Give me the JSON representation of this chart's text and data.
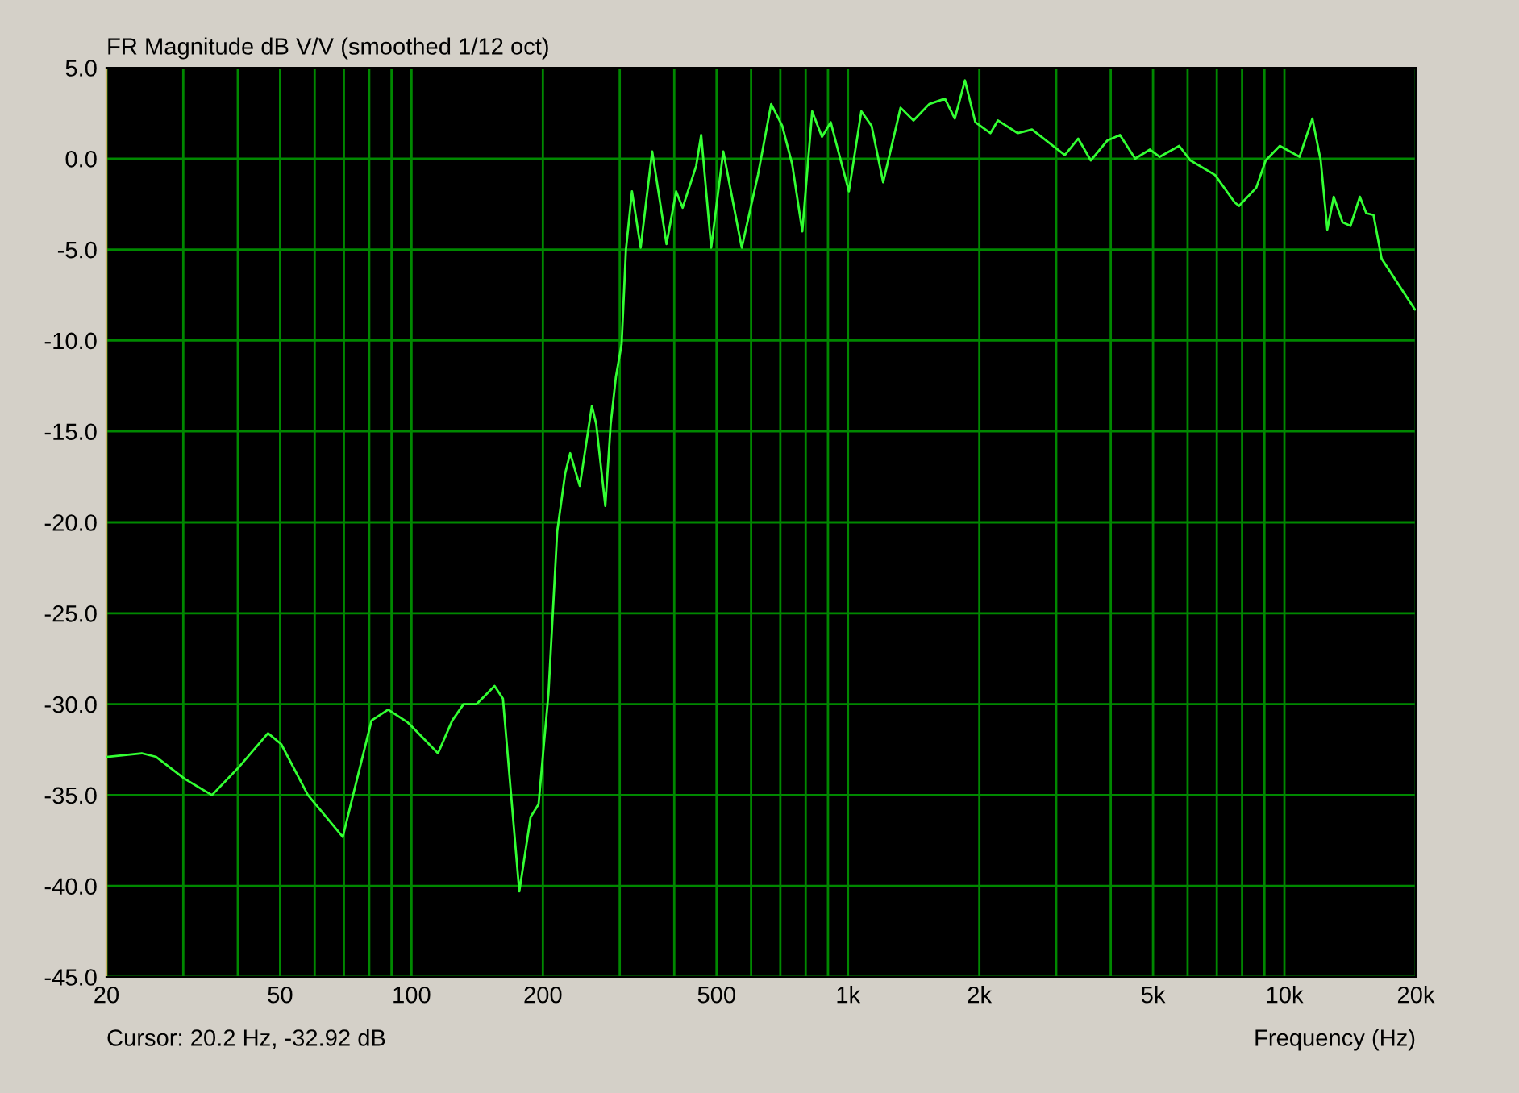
{
  "chart_data": {
    "type": "line",
    "title": "FR Magnitude dB V/V (smoothed 1/12 oct)",
    "xlabel": "Frequency (Hz)",
    "annotations": [
      "Cursor: 20.2 Hz, -32.92 dB"
    ],
    "log": "x",
    "grid": true,
    "xlim": [
      20,
      20000
    ],
    "ylim": [
      -45,
      5
    ],
    "xticks": [
      20,
      {
        "value": 30,
        "label": null
      },
      {
        "value": 40,
        "label": null
      },
      50,
      {
        "value": 60,
        "label": null
      },
      {
        "value": 70,
        "label": null
      },
      {
        "value": 80,
        "label": null
      },
      {
        "value": 90,
        "label": null
      },
      100,
      200,
      {
        "value": 300,
        "label": null
      },
      {
        "value": 400,
        "label": null
      },
      500,
      {
        "value": 600,
        "label": null
      },
      {
        "value": 700,
        "label": null
      },
      {
        "value": 800,
        "label": null
      },
      {
        "value": 900,
        "label": null
      },
      {
        "value": 1000,
        "label": "1k"
      },
      {
        "value": 2000,
        "label": "2k"
      },
      {
        "value": 3000,
        "label": null
      },
      {
        "value": 4000,
        "label": null
      },
      {
        "value": 5000,
        "label": "5k"
      },
      {
        "value": 6000,
        "label": null
      },
      {
        "value": 7000,
        "label": null
      },
      {
        "value": 8000,
        "label": null
      },
      {
        "value": 9000,
        "label": null
      },
      {
        "value": 10000,
        "label": "10k"
      },
      {
        "value": 20000,
        "label": "20k"
      }
    ],
    "yticks": [
      {
        "value": 5,
        "label": "5.0"
      },
      {
        "value": 0,
        "label": "0.0"
      },
      {
        "value": -5,
        "label": "-5.0"
      },
      {
        "value": -10,
        "label": "-10.0"
      },
      {
        "value": -15,
        "label": "-15.0"
      },
      {
        "value": -20,
        "label": "-20.0"
      },
      {
        "value": -25,
        "label": "-25.0"
      },
      {
        "value": -30,
        "label": "-30.0"
      },
      {
        "value": -35,
        "label": "-35.0"
      },
      {
        "value": -40,
        "label": "-40.0"
      },
      {
        "value": -45,
        "label": "-45.0"
      }
    ],
    "series": [
      {
        "color": "#33ff33",
        "x": [
          20,
          24.1,
          26,
          30.2,
          34.9,
          40.1,
          46.9,
          50.3,
          57.9,
          69.6,
          74,
          81,
          88.4,
          98,
          115,
          124,
          131.6,
          141,
          155,
          162,
          176.6,
          187.5,
          195.5,
          206,
          215.7,
          225,
          231,
          243,
          259,
          265,
          278,
          286,
          294,
          303,
          310,
          320,
          335,
          356,
          384,
          404,
          418,
          449,
          461,
          486,
          518,
          571,
          622,
          667,
          707,
          745,
          786,
          828,
          872,
          913,
          941,
          1005,
          1073,
          1133,
          1204,
          1320,
          1413,
          1535,
          1668,
          1757,
          1854,
          1958,
          2120,
          2205,
          2450,
          2640,
          3140,
          3370,
          3600,
          3930,
          4200,
          4550,
          4920,
          5180,
          5740,
          6090,
          6935,
          7690,
          7870,
          8620,
          9060,
          9760,
          10830,
          11590,
          12110,
          12540,
          12970,
          13590,
          14170,
          14890,
          15400,
          16000,
          16700,
          19900
        ],
        "values": [
          -32.9,
          -32.7,
          -32.9,
          -34.1,
          -35.0,
          -33.5,
          -31.6,
          -32.2,
          -35.0,
          -37.3,
          -34.7,
          -30.9,
          -30.3,
          -31.0,
          -32.7,
          -30.9,
          -30.0,
          -30.0,
          -29.0,
          -29.7,
          -40.3,
          -36.2,
          -35.5,
          -29.4,
          -20.5,
          -17.3,
          -16.2,
          -18.0,
          -13.6,
          -14.6,
          -19.1,
          -14.6,
          -12.0,
          -10.2,
          -5.0,
          -1.8,
          -4.9,
          0.4,
          -4.7,
          -1.8,
          -2.7,
          -0.4,
          1.3,
          -4.9,
          0.4,
          -4.9,
          -0.9,
          3.0,
          1.8,
          -0.3,
          -4.0,
          2.6,
          1.2,
          2.0,
          0.8,
          -1.8,
          2.6,
          1.8,
          -1.3,
          2.8,
          2.1,
          3.0,
          3.3,
          2.2,
          4.3,
          2.0,
          1.4,
          2.1,
          1.4,
          1.6,
          0.2,
          1.1,
          -0.1,
          1.0,
          1.3,
          0.0,
          0.5,
          0.1,
          0.7,
          -0.1,
          -0.9,
          -2.4,
          -2.6,
          -1.6,
          -0.1,
          0.7,
          0.1,
          2.2,
          -0.1,
          -3.9,
          -2.1,
          -3.5,
          -3.7,
          -2.1,
          -3.0,
          -3.1,
          -5.5,
          -8.3
        ]
      }
    ]
  }
}
